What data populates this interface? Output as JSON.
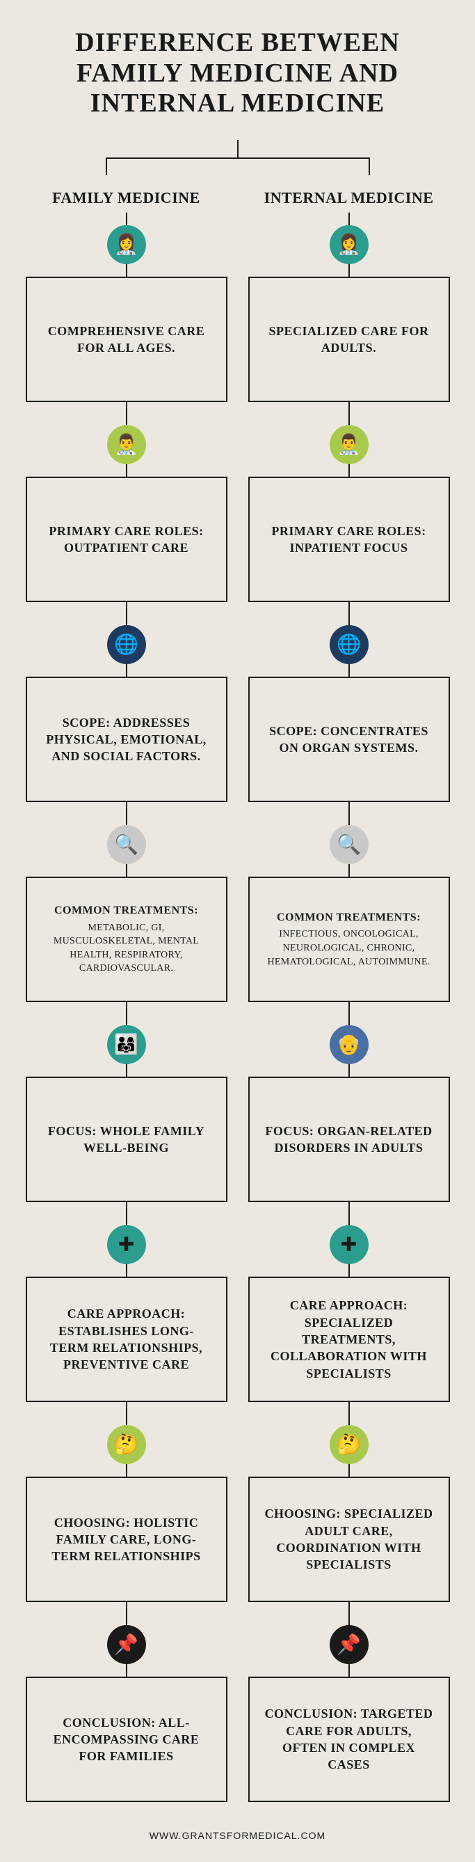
{
  "title": "DIFFERENCE BETWEEN FAMILY MEDICINE AND INTERNAL MEDICINE",
  "footer": "WWW.GRANTSFORMEDICAL.COM",
  "columns": {
    "left": {
      "header": "FAMILY MEDICINE"
    },
    "right": {
      "header": "INTERNAL MEDICINE"
    }
  },
  "rows": [
    {
      "icon_bg": "#2a9d8f",
      "icon_glyph": "👩‍⚕️",
      "left": {
        "label": "COMPREHENSIVE CARE FOR ALL AGES."
      },
      "right": {
        "label": "SPECIALIZED CARE FOR ADULTS."
      }
    },
    {
      "icon_bg": "#a8c94b",
      "icon_glyph": "👨‍⚕️",
      "left": {
        "label": "PRIMARY CARE ROLES: OUTPATIENT CARE"
      },
      "right": {
        "label": "PRIMARY CARE ROLES: INPATIENT FOCUS"
      }
    },
    {
      "icon_bg": "#1f3a5f",
      "icon_glyph": "🌐",
      "left": {
        "label": "SCOPE: ADDRESSES PHYSICAL, EMOTIONAL, AND SOCIAL FACTORS."
      },
      "right": {
        "label": "SCOPE: CONCENTRATES ON ORGAN SYSTEMS."
      }
    },
    {
      "icon_bg": "#c9c9c9",
      "icon_glyph": "🔍",
      "small": true,
      "left": {
        "label": "COMMON TREATMENTS:",
        "detail": "METABOLIC, GI, MUSCULOSKELETAL, MENTAL HEALTH, RESPIRATORY, CARDIOVASCULAR."
      },
      "right": {
        "label": "COMMON TREATMENTS:",
        "detail": "INFECTIOUS, ONCOLOGICAL, NEUROLOGICAL, CHRONIC, HEMATOLOGICAL, AUTOIMMUNE."
      }
    },
    {
      "icon_bg_left": "#2a9d8f",
      "icon_glyph_left": "👨‍👩‍👧",
      "icon_bg_right": "#4a6fa5",
      "icon_glyph_right": "👴",
      "left": {
        "label": "FOCUS: WHOLE FAMILY WELL-BEING"
      },
      "right": {
        "label": "FOCUS: ORGAN-RELATED DISORDERS IN ADULTS"
      }
    },
    {
      "icon_bg": "#2a9d8f",
      "icon_glyph": "✚",
      "left": {
        "label": "CARE APPROACH: ESTABLISHES LONG-TERM RELATIONSHIPS, PREVENTIVE CARE"
      },
      "right": {
        "label": "CARE APPROACH: SPECIALIZED TREATMENTS, COLLABORATION WITH SPECIALISTS"
      }
    },
    {
      "icon_bg": "#a8c94b",
      "icon_glyph": "🤔",
      "left": {
        "label": "CHOOSING: HOLISTIC FAMILY CARE, LONG-TERM RELATIONSHIPS"
      },
      "right": {
        "label": "CHOOSING: SPECIALIZED ADULT CARE, COORDINATION WITH SPECIALISTS"
      }
    },
    {
      "icon_bg": "#1a1a1a",
      "icon_glyph": "📌",
      "left": {
        "label": "CONCLUSION: ALL-ENCOMPASSING CARE FOR FAMILIES"
      },
      "right": {
        "label": "CONCLUSION: TARGETED CARE FOR ADULTS, OFTEN IN COMPLEX CASES"
      }
    }
  ],
  "colors": {
    "background": "#ece8e1",
    "border": "#1a1a1a",
    "text": "#1a1a1a"
  }
}
